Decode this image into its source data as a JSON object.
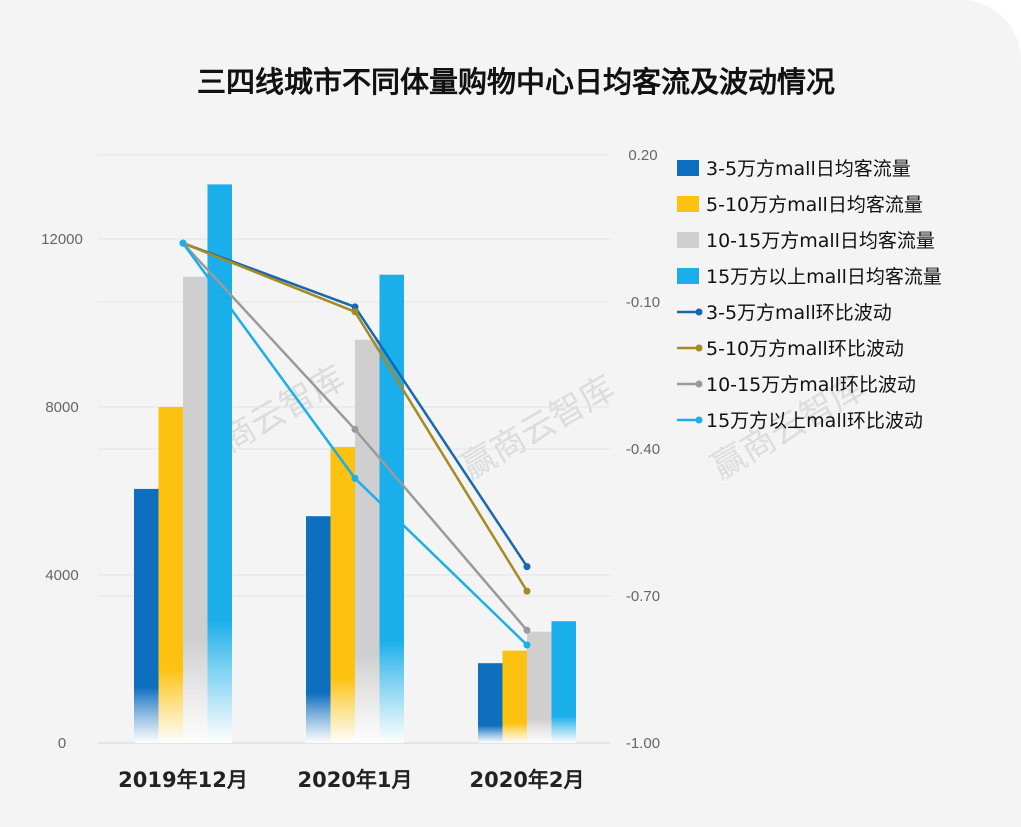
{
  "chart_data": {
    "type": "bar",
    "title": "三四线城市不同体量购物中心日均客流及波动情况",
    "categories": [
      "2019年12月",
      "2020年1月",
      "2020年2月"
    ],
    "left_axis": {
      "ylim": [
        0,
        14000
      ],
      "ticks": [
        0,
        4000,
        8000,
        12000
      ],
      "tick_labels": [
        "0",
        "4000",
        "8000",
        "12000"
      ]
    },
    "right_axis": {
      "ylim": [
        -1.0,
        0.2
      ],
      "ticks": [
        -1.0,
        -0.7,
        -0.4,
        -0.1,
        0.2
      ],
      "tick_labels": [
        "-1.00",
        "-0.70",
        "-0.40",
        "-0.10",
        "0.20"
      ]
    },
    "bar_series": [
      {
        "name": "3-5万方mall日均客流量",
        "values": [
          6050,
          5400,
          1900
        ],
        "color": "#0e6fbf"
      },
      {
        "name": "5-10万方mall日均客流量",
        "values": [
          8000,
          7050,
          2200
        ],
        "color": "#fcc20f"
      },
      {
        "name": "10-15万方mall日均客流量",
        "values": [
          11100,
          9600,
          2650
        ],
        "color": "#cfcfcf"
      },
      {
        "name": "15万方以上mall日均客流量",
        "values": [
          13300,
          11150,
          2900
        ],
        "color": "#1aaeea"
      }
    ],
    "line_series": [
      {
        "name": "3-5万方mall环比波动",
        "values": [
          0.02,
          -0.11,
          -0.64
        ],
        "color": "#1868b0"
      },
      {
        "name": "5-10万方mall环比波动",
        "values": [
          0.02,
          -0.12,
          -0.69
        ],
        "color": "#a78a23"
      },
      {
        "name": "10-15万方mall环比波动",
        "values": [
          0.02,
          -0.36,
          -0.77
        ],
        "color": "#9a9a9a"
      },
      {
        "name": "15万方以上mall环比波动",
        "values": [
          0.02,
          -0.46,
          -0.8
        ],
        "color": "#1aaeea"
      }
    ],
    "grid": true,
    "legend_position": "right"
  },
  "watermark": "赢商云智库"
}
